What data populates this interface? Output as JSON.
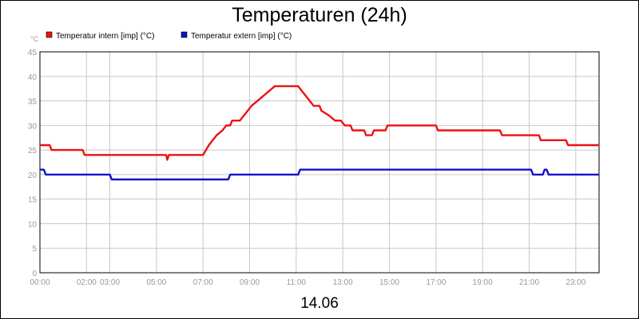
{
  "chart_data": {
    "type": "line",
    "title": "Temperaturen (24h)",
    "subtitle": "14.06",
    "y_unit": "°C",
    "ylim": [
      0,
      45
    ],
    "y_ticks": [
      "45",
      "40",
      "35",
      "30",
      "25",
      "20",
      "15",
      "10",
      "5",
      "0"
    ],
    "x_range": [
      "00:00",
      "24:00"
    ],
    "x_ticks": [
      "00:00",
      "02:00",
      "03:00",
      "05:00",
      "07:00",
      "09:00",
      "11:00",
      "13:00",
      "15:00",
      "17:00",
      "19:00",
      "21:00",
      "23:00"
    ],
    "grid": true,
    "legend_position": "top-left",
    "series": [
      {
        "name": "Temperatur intern [imp] (°C)",
        "color": "#ee1111",
        "points": [
          [
            "00:00",
            26
          ],
          [
            "00:25",
            26
          ],
          [
            "00:30",
            25
          ],
          [
            "01:50",
            25
          ],
          [
            "01:55",
            24
          ],
          [
            "05:25",
            24
          ],
          [
            "05:28",
            23
          ],
          [
            "05:32",
            24
          ],
          [
            "07:00",
            24
          ],
          [
            "07:15",
            26
          ],
          [
            "07:35",
            28
          ],
          [
            "07:50",
            29
          ],
          [
            "08:00",
            30
          ],
          [
            "08:10",
            30
          ],
          [
            "08:15",
            31
          ],
          [
            "08:35",
            31
          ],
          [
            "08:45",
            32
          ],
          [
            "08:55",
            33
          ],
          [
            "09:05",
            34
          ],
          [
            "09:20",
            35
          ],
          [
            "09:35",
            36
          ],
          [
            "09:50",
            37
          ],
          [
            "10:05",
            38
          ],
          [
            "11:05",
            38
          ],
          [
            "11:15",
            37
          ],
          [
            "11:25",
            36
          ],
          [
            "11:35",
            35
          ],
          [
            "11:45",
            34
          ],
          [
            "12:00",
            34
          ],
          [
            "12:05",
            33
          ],
          [
            "12:25",
            32
          ],
          [
            "12:40",
            31
          ],
          [
            "12:55",
            31
          ],
          [
            "13:05",
            30
          ],
          [
            "13:20",
            30
          ],
          [
            "13:25",
            29
          ],
          [
            "13:55",
            29
          ],
          [
            "14:00",
            28
          ],
          [
            "14:15",
            28
          ],
          [
            "14:20",
            29
          ],
          [
            "14:50",
            29
          ],
          [
            "14:55",
            30
          ],
          [
            "17:00",
            30
          ],
          [
            "17:05",
            29
          ],
          [
            "19:45",
            29
          ],
          [
            "19:50",
            28
          ],
          [
            "21:25",
            28
          ],
          [
            "21:30",
            27
          ],
          [
            "22:35",
            27
          ],
          [
            "22:40",
            26
          ],
          [
            "24:00",
            26
          ]
        ]
      },
      {
        "name": "Temperatur extern [imp] (°C)",
        "color": "#1111cc",
        "points": [
          [
            "00:00",
            21
          ],
          [
            "00:10",
            21
          ],
          [
            "00:15",
            20
          ],
          [
            "03:00",
            20
          ],
          [
            "03:05",
            19
          ],
          [
            "08:05",
            19
          ],
          [
            "08:10",
            20
          ],
          [
            "11:05",
            20
          ],
          [
            "11:10",
            21
          ],
          [
            "21:05",
            21
          ],
          [
            "21:10",
            20
          ],
          [
            "21:35",
            20
          ],
          [
            "21:40",
            21
          ],
          [
            "21:45",
            21
          ],
          [
            "21:50",
            20
          ],
          [
            "24:00",
            20
          ]
        ]
      }
    ]
  }
}
